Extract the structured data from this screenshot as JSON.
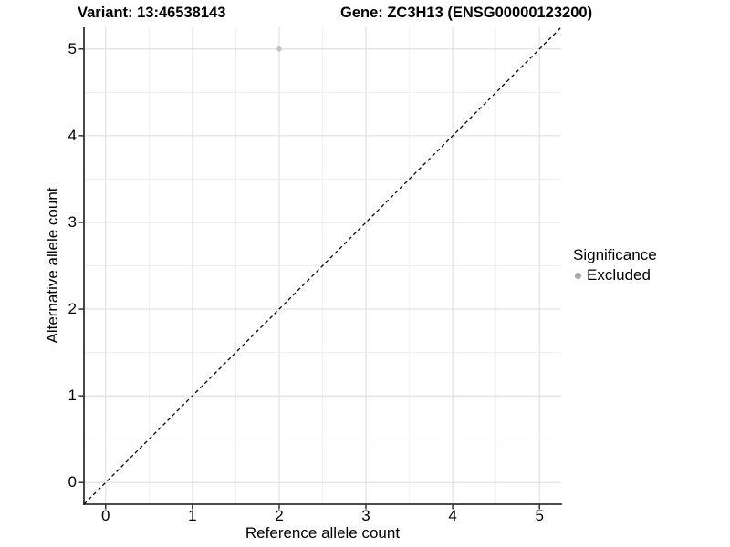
{
  "figure": {
    "title_variant": "Variant: 13:46538143",
    "title_gene": "Gene: ZC3H13 (ENSG00000123200)"
  },
  "chart_data": {
    "type": "scatter",
    "title": "Variant: 13:46538143    Gene: ZC3H13 (ENSG00000123200)",
    "xlabel": "Reference allele count",
    "ylabel": "Alternative allele count",
    "x_ticks": [
      0,
      1,
      2,
      3,
      4,
      5
    ],
    "y_ticks": [
      0,
      1,
      2,
      3,
      4,
      5
    ],
    "xlim": [
      -0.25,
      5.25
    ],
    "ylim": [
      -0.25,
      5.25
    ],
    "grid": "major+minor",
    "legend_position": "right",
    "points": [
      {
        "x": 2,
        "y": 5,
        "series": "Excluded"
      }
    ],
    "reference_line": {
      "slope": 1,
      "intercept": 0,
      "style": "dashed"
    },
    "legend": {
      "title": "Significance",
      "entries": [
        {
          "label": "Excluded",
          "marker": "circle",
          "color": "#a8a8a8"
        }
      ]
    },
    "colors": {
      "point": "#c1c1c1",
      "grid_major": "#e2e2e2",
      "grid_minor": "#f0f0f0",
      "axis": "#333333",
      "reference_line": "#000000",
      "background": "#ffffff"
    }
  }
}
